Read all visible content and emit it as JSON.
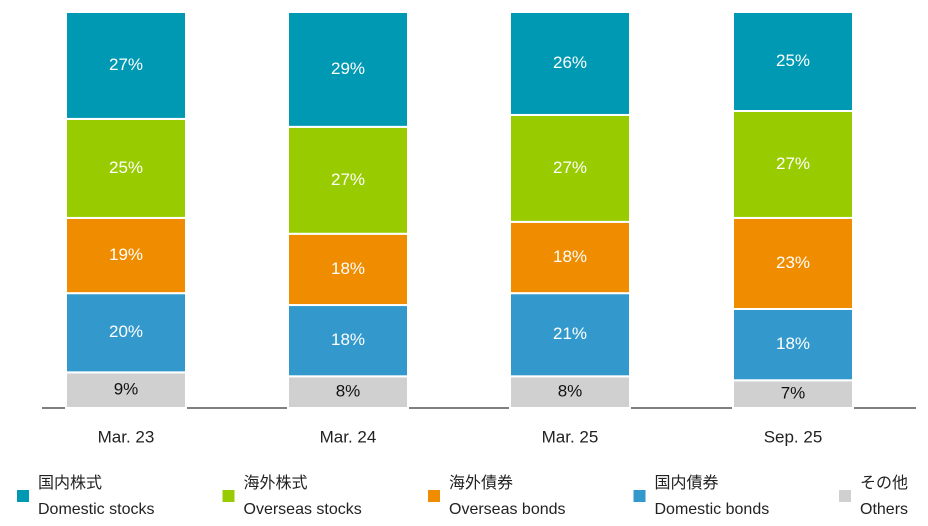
{
  "chart_data": {
    "type": "stacked_bar",
    "categories": [
      "Mar. 23",
      "Mar. 24",
      "Mar. 25",
      "Sep. 25"
    ],
    "ylim": [
      0,
      100
    ],
    "series": [
      {
        "name": "国内株式",
        "subname": "Domestic stocks",
        "color": "#0099b4",
        "values": [
          27,
          29,
          26,
          25
        ],
        "value_labels": [
          "27%",
          "29%",
          "26%",
          "25%"
        ]
      },
      {
        "name": "海外株式",
        "subname": "Overseas stocks",
        "color": "#99cc00",
        "values": [
          25,
          27,
          27,
          27
        ],
        "value_labels": [
          "25%",
          "27%",
          "27%",
          "27%"
        ]
      },
      {
        "name": "海外債券",
        "subname": "Overseas bonds",
        "color": "#f08c00",
        "values": [
          19,
          18,
          18,
          23
        ],
        "value_labels": [
          "19%",
          "18%",
          "18%",
          "23%"
        ]
      },
      {
        "name": "国内債券",
        "subname": "Domestic bonds",
        "color": "#3399cc",
        "values": [
          20,
          18,
          21,
          18
        ],
        "value_labels": [
          "20%",
          "18%",
          "21%",
          "18%"
        ]
      },
      {
        "name": "その他",
        "subname": "Others",
        "color": "#d0d0d0",
        "values": [
          9,
          8,
          8,
          7
        ],
        "value_labels": [
          "9%",
          "8%",
          "8%",
          "7%"
        ]
      }
    ]
  }
}
